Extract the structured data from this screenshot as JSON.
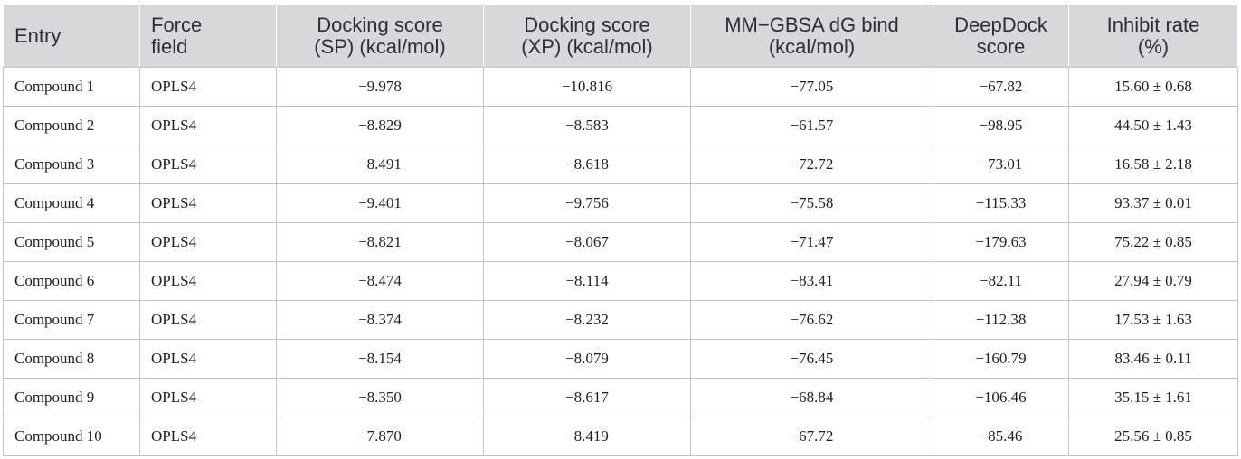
{
  "table": {
    "headers": [
      [
        "Entry",
        ""
      ],
      [
        "Force",
        "field"
      ],
      [
        "Docking score",
        "(SP) (kcal/mol)"
      ],
      [
        "Docking score",
        "(XP) (kcal/mol)"
      ],
      [
        "MM−GBSA dG bind",
        "(kcal/mol)"
      ],
      [
        "DeepDock",
        "score"
      ],
      [
        "Inhibit rate",
        "(%)"
      ]
    ],
    "rows": [
      [
        "Compound 1",
        "OPLS4",
        "−9.978",
        "−10.816",
        "−77.05",
        "−67.82",
        "15.60 ± 0.68"
      ],
      [
        "Compound 2",
        "OPLS4",
        "−8.829",
        "−8.583",
        "−61.57",
        "−98.95",
        "44.50 ± 1.43"
      ],
      [
        "Compound 3",
        "OPLS4",
        "−8.491",
        "−8.618",
        "−72.72",
        "−73.01",
        "16.58 ± 2.18"
      ],
      [
        "Compound 4",
        "OPLS4",
        "−9.401",
        "−9.756",
        "−75.58",
        "−115.33",
        "93.37 ± 0.01"
      ],
      [
        "Compound 5",
        "OPLS4",
        "−8.821",
        "−8.067",
        "−71.47",
        "−179.63",
        "75.22 ± 0.85"
      ],
      [
        "Compound 6",
        "OPLS4",
        "−8.474",
        "−8.114",
        "−83.41",
        "−82.11",
        "27.94 ± 0.79"
      ],
      [
        "Compound 7",
        "OPLS4",
        "−8.374",
        "−8.232",
        "−76.62",
        "−112.38",
        "17.53 ± 1.63"
      ],
      [
        "Compound 8",
        "OPLS4",
        "−8.154",
        "−8.079",
        "−76.45",
        "−160.79",
        "83.46 ± 0.11"
      ],
      [
        "Compound 9",
        "OPLS4",
        "−8.350",
        "−8.617",
        "−68.84",
        "−106.46",
        "35.15 ± 1.61"
      ],
      [
        "Compound 10",
        "OPLS4",
        "−7.870",
        "−8.419",
        "−67.72",
        "−85.46",
        "25.56 ± 0.85"
      ]
    ]
  },
  "colors": {
    "header_bg": "#d6d8db",
    "header_text": "#2b2f33",
    "grid": "#bfc3c7",
    "body_text": "#1f1f1f"
  }
}
